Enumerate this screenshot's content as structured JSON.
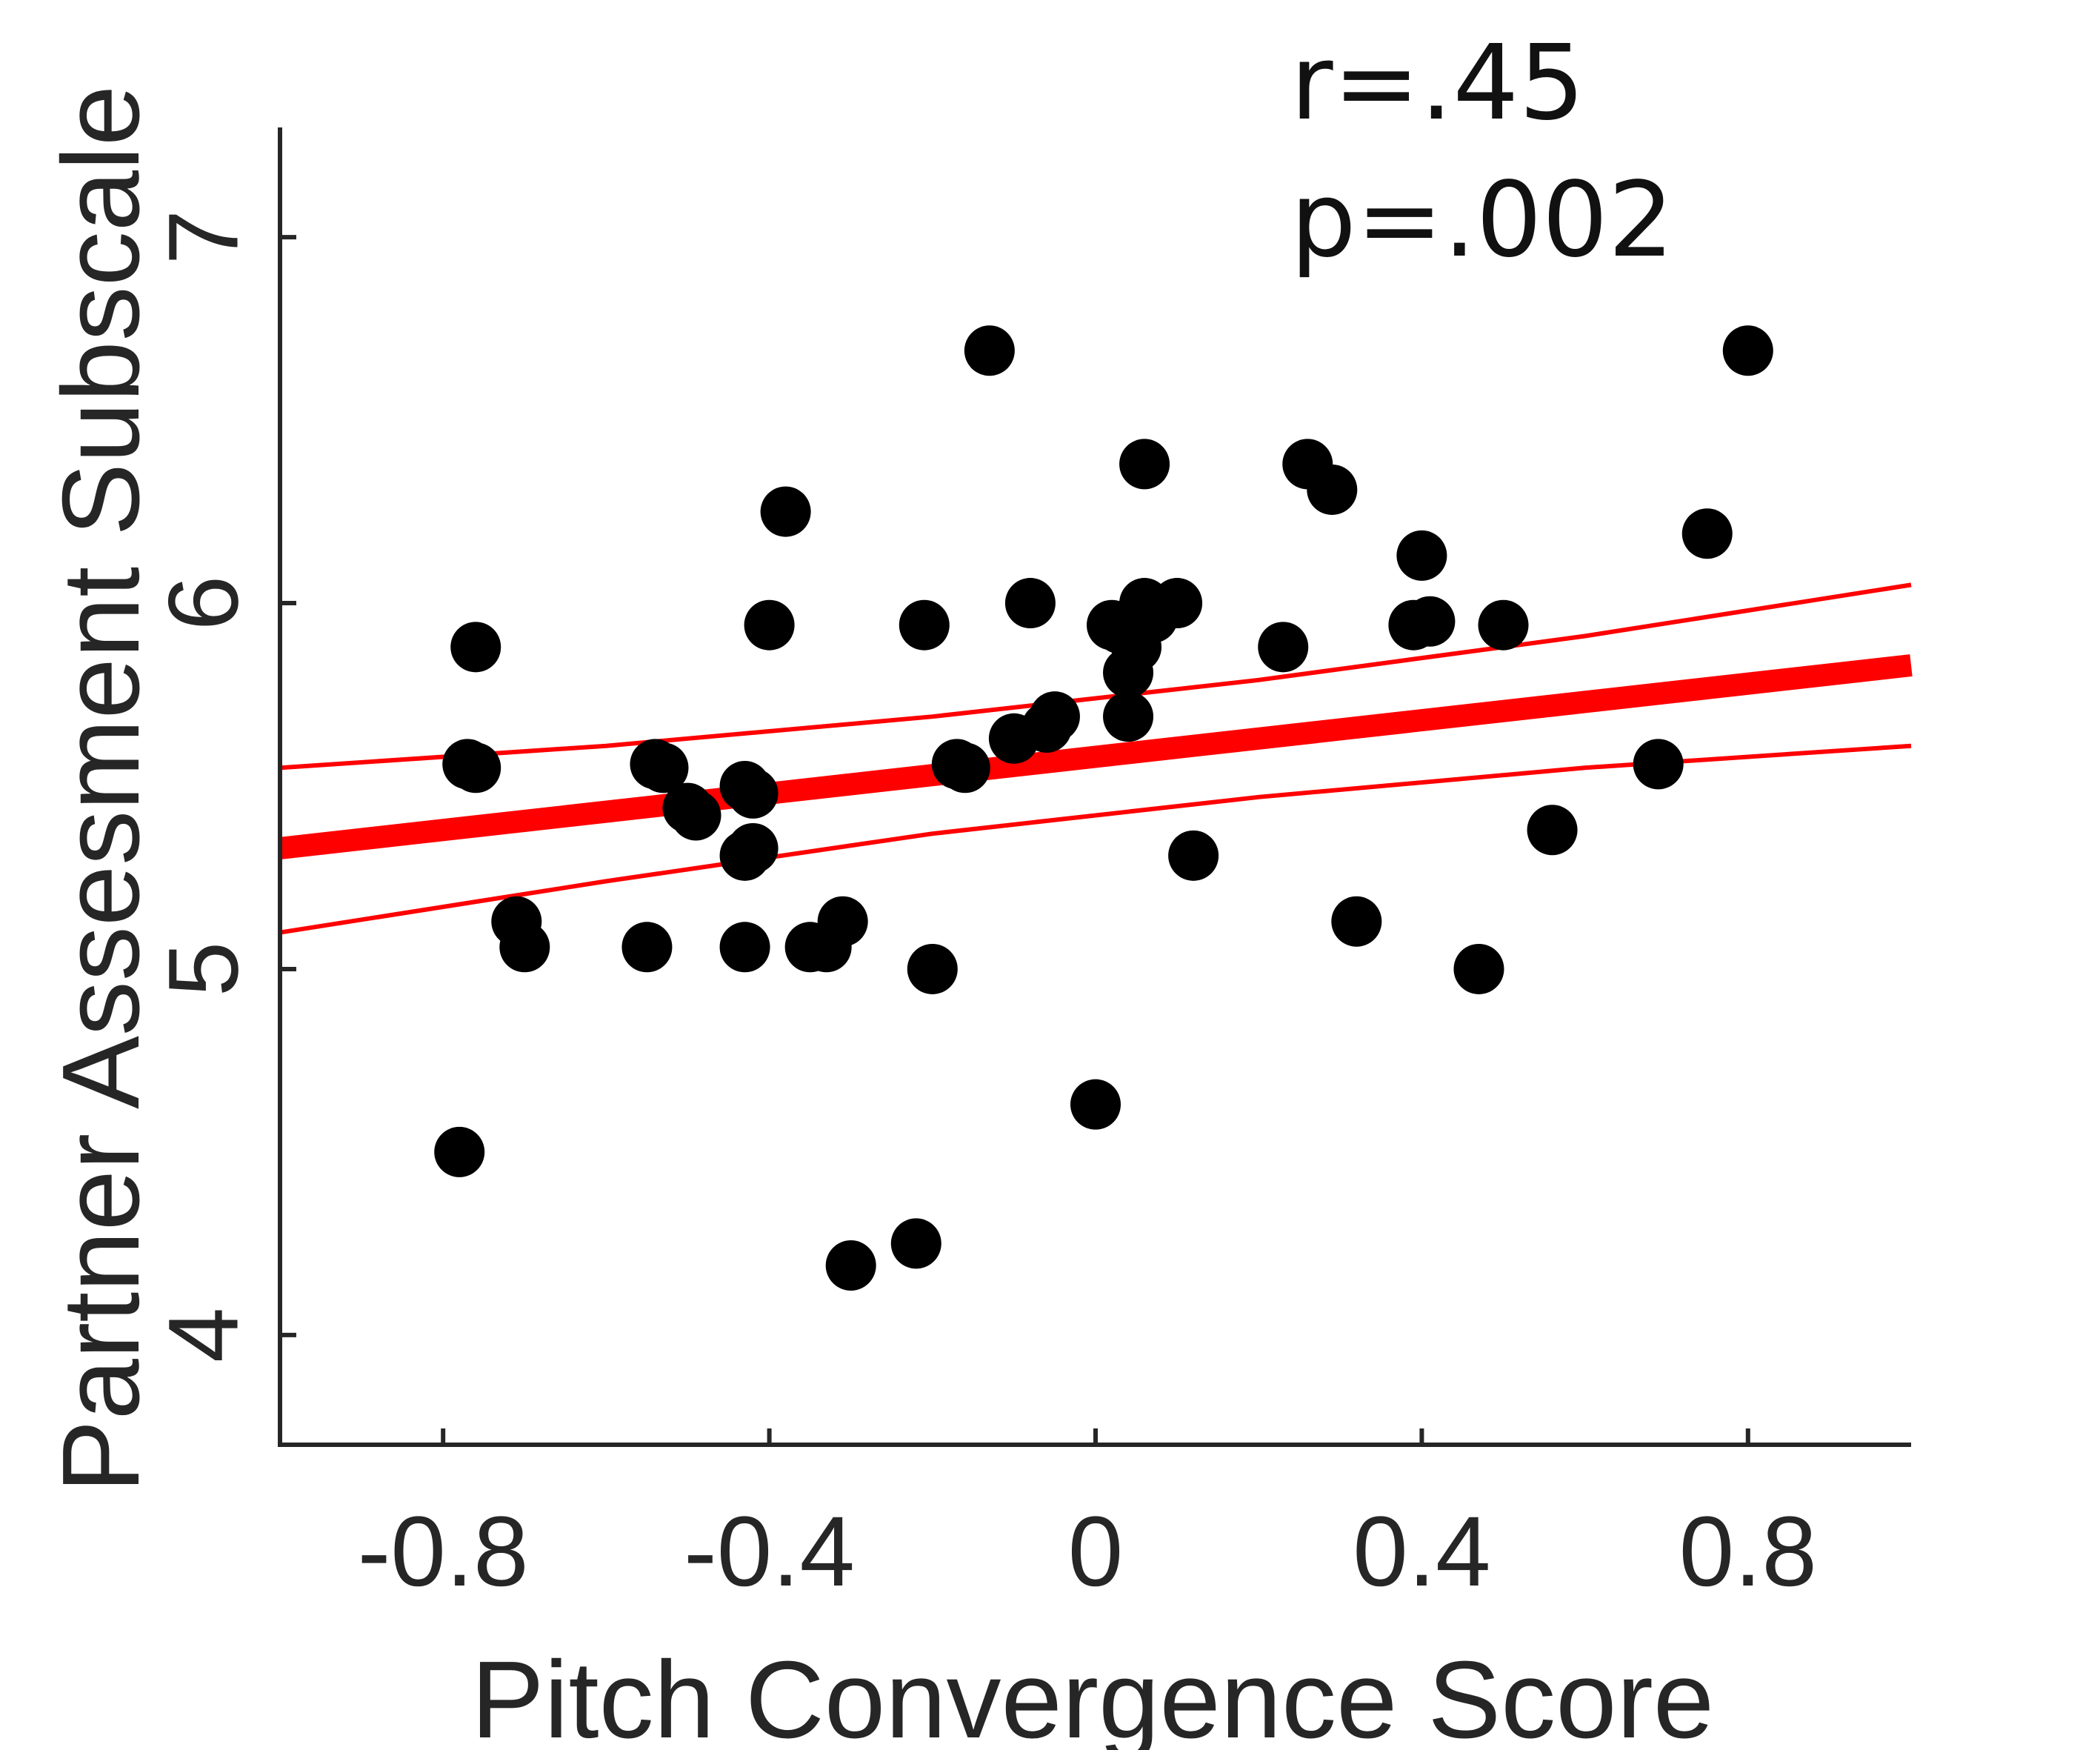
{
  "chart_data": {
    "type": "scatter",
    "title": "",
    "xlabel": "Pitch Convergence Score",
    "ylabel": "Partner Assesment Subscale",
    "xlim": [
      -1.0,
      1.0
    ],
    "ylim": [
      3.7,
      7.3
    ],
    "xticks": [
      -0.8,
      -0.4,
      0,
      0.4,
      0.8
    ],
    "xtick_labels": [
      "-0.8",
      "-0.4",
      "0",
      "0.4",
      "0.8"
    ],
    "yticks": [
      4,
      5,
      6,
      7
    ],
    "ytick_labels": [
      "4",
      "5",
      "6",
      "7"
    ],
    "grid": false,
    "annotations": [
      "r=.45",
      "p=.002"
    ],
    "points": [
      {
        "x": -0.78,
        "y": 4.5
      },
      {
        "x": -0.77,
        "y": 5.56
      },
      {
        "x": -0.76,
        "y": 5.55
      },
      {
        "x": -0.76,
        "y": 5.88
      },
      {
        "x": -0.71,
        "y": 5.13
      },
      {
        "x": -0.7,
        "y": 5.06
      },
      {
        "x": -0.55,
        "y": 5.06
      },
      {
        "x": -0.54,
        "y": 5.56
      },
      {
        "x": -0.53,
        "y": 5.55
      },
      {
        "x": -0.5,
        "y": 5.44
      },
      {
        "x": -0.49,
        "y": 5.42
      },
      {
        "x": -0.43,
        "y": 5.5
      },
      {
        "x": -0.42,
        "y": 5.48
      },
      {
        "x": -0.43,
        "y": 5.31
      },
      {
        "x": -0.42,
        "y": 5.33
      },
      {
        "x": -0.43,
        "y": 5.06
      },
      {
        "x": -0.4,
        "y": 5.94
      },
      {
        "x": -0.38,
        "y": 6.25
      },
      {
        "x": -0.35,
        "y": 5.06
      },
      {
        "x": -0.33,
        "y": 5.06
      },
      {
        "x": -0.31,
        "y": 5.13
      },
      {
        "x": -0.3,
        "y": 4.19
      },
      {
        "x": -0.22,
        "y": 4.25
      },
      {
        "x": -0.21,
        "y": 5.94
      },
      {
        "x": -0.2,
        "y": 5.0
      },
      {
        "x": -0.17,
        "y": 5.56
      },
      {
        "x": -0.16,
        "y": 5.55
      },
      {
        "x": -0.13,
        "y": 6.69
      },
      {
        "x": -0.1,
        "y": 5.63
      },
      {
        "x": -0.08,
        "y": 6.0
      },
      {
        "x": -0.06,
        "y": 5.66
      },
      {
        "x": -0.05,
        "y": 5.69
      },
      {
        "x": 0.0,
        "y": 4.63
      },
      {
        "x": 0.02,
        "y": 5.94
      },
      {
        "x": 0.03,
        "y": 5.93
      },
      {
        "x": 0.04,
        "y": 5.81
      },
      {
        "x": 0.04,
        "y": 5.69
      },
      {
        "x": 0.05,
        "y": 5.88
      },
      {
        "x": 0.06,
        "y": 6.0
      },
      {
        "x": 0.06,
        "y": 6.38
      },
      {
        "x": 0.07,
        "y": 5.96
      },
      {
        "x": 0.1,
        "y": 6.0
      },
      {
        "x": 0.12,
        "y": 5.31
      },
      {
        "x": 0.23,
        "y": 5.88
      },
      {
        "x": 0.26,
        "y": 6.38
      },
      {
        "x": 0.29,
        "y": 6.31
      },
      {
        "x": 0.32,
        "y": 5.13
      },
      {
        "x": 0.39,
        "y": 5.94
      },
      {
        "x": 0.4,
        "y": 6.13
      },
      {
        "x": 0.41,
        "y": 5.95
      },
      {
        "x": 0.47,
        "y": 5.0
      },
      {
        "x": 0.5,
        "y": 5.94
      },
      {
        "x": 0.56,
        "y": 5.38
      },
      {
        "x": 0.69,
        "y": 5.56
      },
      {
        "x": 0.75,
        "y": 6.19
      },
      {
        "x": 0.8,
        "y": 6.69
      }
    ],
    "fit_line": {
      "x": [
        -1.0,
        1.0
      ],
      "y": [
        5.33,
        5.83
      ]
    },
    "ci_upper": {
      "x": [
        -1.0,
        -0.6,
        -0.2,
        0.2,
        0.6,
        1.0
      ],
      "y": [
        5.55,
        5.61,
        5.69,
        5.79,
        5.91,
        6.05
      ]
    },
    "ci_lower": {
      "x": [
        -1.0,
        -0.6,
        -0.2,
        0.2,
        0.6,
        1.0
      ],
      "y": [
        5.1,
        5.24,
        5.37,
        5.47,
        5.55,
        5.61
      ]
    },
    "colors": {
      "points": "#000000",
      "fit": "#ff0000",
      "ci": "#ff0000",
      "axis": "#262626"
    }
  }
}
